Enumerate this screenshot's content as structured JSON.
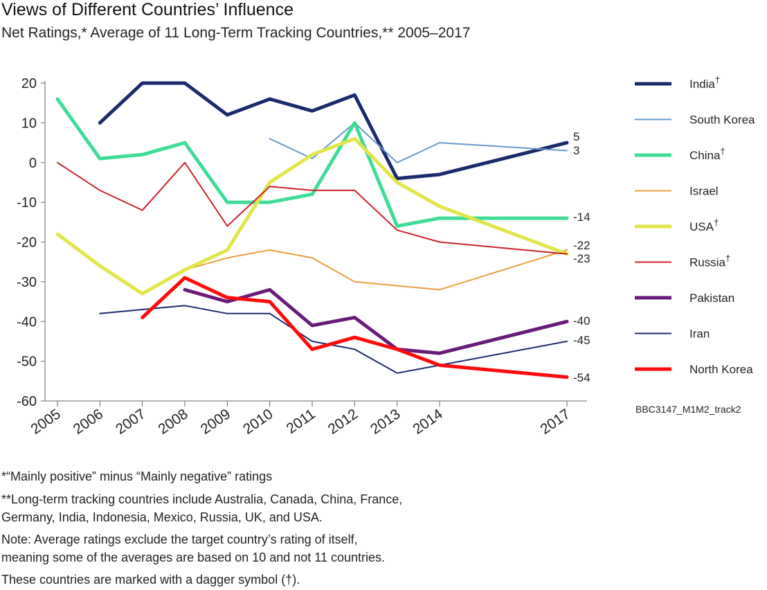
{
  "chart_data": {
    "type": "line",
    "title": "Views of Different Countries’ Influence",
    "subtitle": "Net Ratings,* Average of 11 Long-Term Tracking Countries,** 2005–2017",
    "x": [
      2005,
      2006,
      2007,
      2008,
      2009,
      2010,
      2011,
      2012,
      2013,
      2014,
      2017
    ],
    "xlim": [
      2005,
      2017
    ],
    "ylim": [
      -60,
      20
    ],
    "yticks": [
      20,
      10,
      0,
      -10,
      -20,
      -30,
      -40,
      -50,
      -60
    ],
    "ytick_labels": [
      "20",
      "10",
      "0",
      "-10",
      "-20",
      "-30",
      "-40",
      "-50",
      "-60"
    ],
    "xtick_labels": [
      "2005",
      "2006",
      "2007",
      "2008",
      "2009",
      "2010",
      "2011",
      "2012",
      "2013",
      "2014",
      "2017"
    ],
    "grid": false,
    "legend_position": "right",
    "series": [
      {
        "name": "India",
        "legend_label": "India",
        "dagger": "†",
        "color": "#1a2a6c",
        "width": 5,
        "points": [
          [
            2006,
            10
          ],
          [
            2007,
            20
          ],
          [
            2008,
            20
          ],
          [
            2009,
            12
          ],
          [
            2010,
            16
          ],
          [
            2011,
            13
          ],
          [
            2012,
            17
          ],
          [
            2013,
            -4
          ],
          [
            2014,
            -3
          ],
          [
            2017,
            5
          ]
        ],
        "end_label": "5"
      },
      {
        "name": "South Korea",
        "legend_label": "South Korea",
        "dagger": "",
        "color": "#6699cc",
        "width": 2,
        "points": [
          [
            2010,
            6
          ],
          [
            2011,
            1
          ],
          [
            2012,
            10
          ],
          [
            2013,
            0
          ],
          [
            2014,
            5
          ],
          [
            2017,
            3
          ]
        ],
        "end_label": "3"
      },
      {
        "name": "China",
        "legend_label": "China",
        "dagger": "†",
        "color": "#3ddc97",
        "width": 5,
        "points": [
          [
            2005,
            16
          ],
          [
            2006,
            1
          ],
          [
            2007,
            2
          ],
          [
            2008,
            5
          ],
          [
            2009,
            -10
          ],
          [
            2010,
            -10
          ],
          [
            2011,
            -8
          ],
          [
            2012,
            10
          ],
          [
            2013,
            -16
          ],
          [
            2014,
            -14
          ],
          [
            2017,
            -14
          ]
        ],
        "end_label": "-14"
      },
      {
        "name": "Israel",
        "legend_label": "Israel",
        "dagger": "",
        "color": "#e8a040",
        "width": 2,
        "points": [
          [
            2008,
            -27
          ],
          [
            2009,
            -24
          ],
          [
            2010,
            -22
          ],
          [
            2011,
            -24
          ],
          [
            2012,
            -30
          ],
          [
            2014,
            -32
          ],
          [
            2017,
            -22
          ]
        ],
        "end_label": "-22"
      },
      {
        "name": "USA",
        "legend_label": "USA",
        "dagger": "†",
        "color": "#e2e548",
        "width": 5,
        "points": [
          [
            2005,
            -18
          ],
          [
            2006,
            -26
          ],
          [
            2007,
            -33
          ],
          [
            2008,
            -27
          ],
          [
            2009,
            -22
          ],
          [
            2010,
            -5
          ],
          [
            2011,
            2
          ],
          [
            2012,
            6
          ],
          [
            2013,
            -5
          ],
          [
            2014,
            -11
          ],
          [
            2017,
            -23
          ]
        ],
        "end_label": "-23"
      },
      {
        "name": "Russia",
        "legend_label": "Russia",
        "dagger": "†",
        "color": "#cc2229",
        "width": 2,
        "points": [
          [
            2005,
            0
          ],
          [
            2006,
            -7
          ],
          [
            2007,
            -12
          ],
          [
            2008,
            0
          ],
          [
            2009,
            -16
          ],
          [
            2010,
            -6
          ],
          [
            2011,
            -7
          ],
          [
            2012,
            -7
          ],
          [
            2013,
            -17
          ],
          [
            2014,
            -20
          ],
          [
            2017,
            -23
          ]
        ],
        "end_label": ""
      },
      {
        "name": "Pakistan",
        "legend_label": "Pakistan",
        "dagger": "",
        "color": "#6a1b7a",
        "width": 5,
        "points": [
          [
            2008,
            -32
          ],
          [
            2009,
            -35
          ],
          [
            2010,
            -32
          ],
          [
            2011,
            -41
          ],
          [
            2012,
            -39
          ],
          [
            2013,
            -47
          ],
          [
            2014,
            -48
          ],
          [
            2017,
            -40
          ]
        ],
        "end_label": "-40"
      },
      {
        "name": "Iran",
        "legend_label": "Iran",
        "dagger": "",
        "color": "#1a2a6c",
        "width": 2,
        "points": [
          [
            2006,
            -38
          ],
          [
            2008,
            -36
          ],
          [
            2009,
            -38
          ],
          [
            2010,
            -38
          ],
          [
            2011,
            -45
          ],
          [
            2012,
            -47
          ],
          [
            2013,
            -53
          ],
          [
            2014,
            -51
          ],
          [
            2017,
            -45
          ]
        ],
        "end_label": "-45"
      },
      {
        "name": "North Korea",
        "legend_label": "North Korea",
        "dagger": "",
        "color": "#ff0a0a",
        "width": 5,
        "points": [
          [
            2007,
            -39
          ],
          [
            2008,
            -29
          ],
          [
            2009,
            -34
          ],
          [
            2010,
            -35
          ],
          [
            2011,
            -47
          ],
          [
            2012,
            -44
          ],
          [
            2013,
            -47
          ],
          [
            2014,
            -51
          ],
          [
            2017,
            -54
          ]
        ],
        "end_label": "-54"
      }
    ],
    "code": "BBC3147_M1M2_track2"
  },
  "footnotes": {
    "f1": "*“Mainly positive” minus “Mainly negative” ratings",
    "f2a": "**Long-term tracking countries include Australia, Canada, China, France,",
    "f2b": "Germany, India, Indonesia, Mexico, Russia, UK, and USA.",
    "f3a": "Note: Average ratings exclude the target country’s rating of itself,",
    "f3b": "meaning some of the averages are based on 10 and not 11 countries.",
    "f4": "These countries are marked with a dagger symbol (†)."
  }
}
